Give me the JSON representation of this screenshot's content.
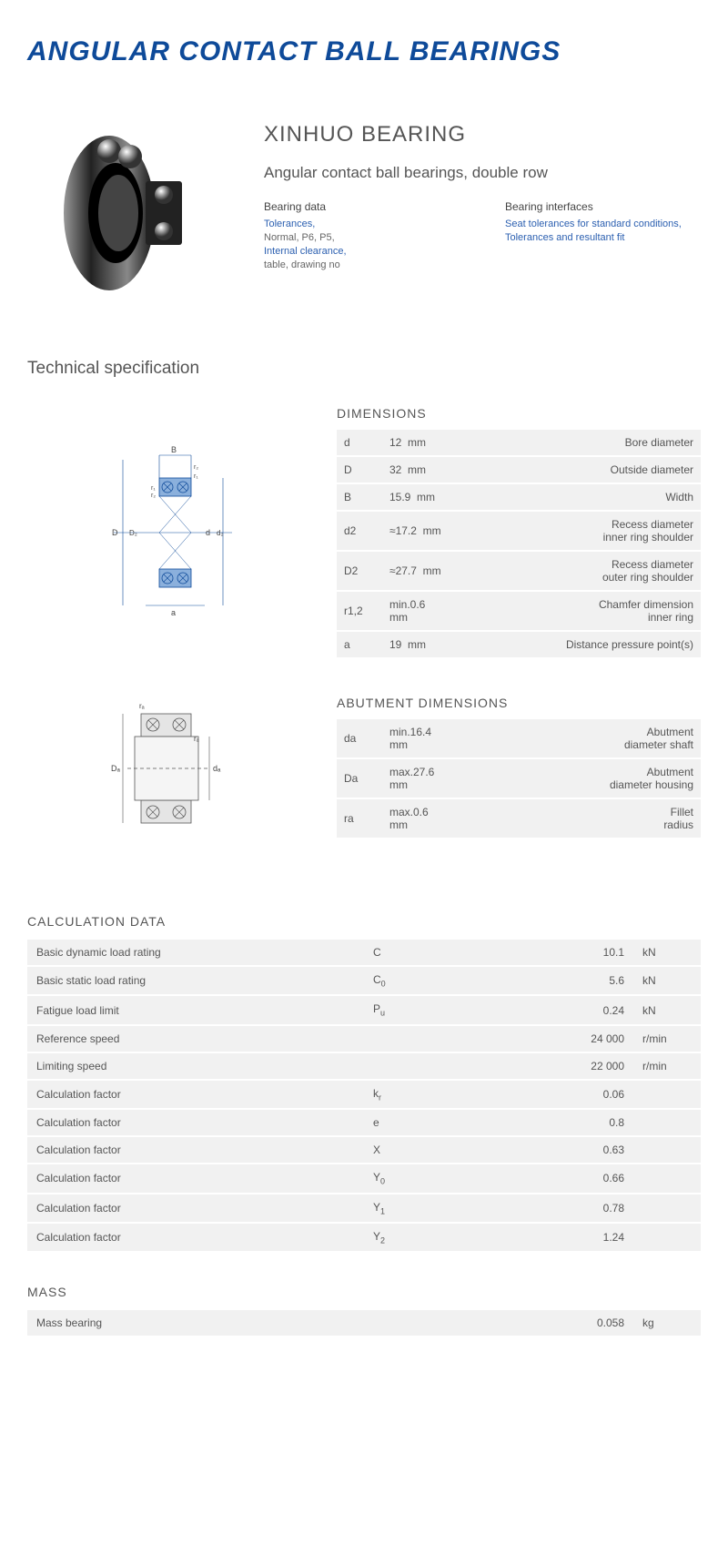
{
  "page_title": "ANGULAR CONTACT BALL BEARINGS",
  "brand": "XINHUO BEARING",
  "subtitle": "Angular contact ball bearings, double row",
  "bearing_data": {
    "heading": "Bearing data",
    "items": [
      {
        "text": "Tolerances,",
        "link": true
      },
      {
        "text": "Normal, P6, P5,",
        "link": false
      },
      {
        "text": "Internal clearance,",
        "link": true
      },
      {
        "text": "table, drawing no",
        "link": false
      }
    ]
  },
  "bearing_interfaces": {
    "heading": "Bearing interfaces",
    "items": [
      {
        "text": "Seat tolerances for standard conditions,",
        "link": true
      },
      {
        "text": "Tolerances and resultant fit",
        "link": true
      }
    ]
  },
  "tech_spec_heading": "Technical specification",
  "dimensions": {
    "title": "DIMENSIONS",
    "rows": [
      {
        "sym": "d",
        "val": "12",
        "unit": "mm",
        "desc": "Bore diameter"
      },
      {
        "sym": "D",
        "val": "32",
        "unit": "mm",
        "desc": "Outside diameter"
      },
      {
        "sym": "B",
        "val": "15.9",
        "unit": "mm",
        "desc": "Width"
      },
      {
        "sym": "d2",
        "val": "≈17.2",
        "unit": "mm",
        "desc": "Recess diameter\ninner ring shoulder"
      },
      {
        "sym": "D2",
        "val": "≈27.7",
        "unit": "mm",
        "desc": "Recess diameter\nouter ring shoulder"
      },
      {
        "sym": "r1,2",
        "val": "min.0.6",
        "unit": "mm",
        "desc": "Chamfer dimension\ninner ring"
      },
      {
        "sym": "a",
        "val": "19",
        "unit": "mm",
        "desc": "Distance pressure point(s)"
      }
    ]
  },
  "abutment": {
    "title": "ABUTMENT DIMENSIONS",
    "rows": [
      {
        "sym": "da",
        "val": "min.16.4",
        "unit": "mm",
        "desc": "Abutment\ndiameter shaft"
      },
      {
        "sym": "Da",
        "val": "max.27.6",
        "unit": "mm",
        "desc": "Abutment\ndiameter housing"
      },
      {
        "sym": "ra",
        "val": "max.0.6",
        "unit": "mm",
        "desc": "Fillet\nradius"
      }
    ]
  },
  "calculation": {
    "title": "CALCULATION DATA",
    "rows": [
      {
        "label": "Basic dynamic load rating",
        "sym": "C",
        "sub": "",
        "val": "10.1",
        "unit": "kN"
      },
      {
        "label": "Basic static load rating",
        "sym": "C",
        "sub": "0",
        "val": "5.6",
        "unit": "kN"
      },
      {
        "label": "Fatigue load limit",
        "sym": "P",
        "sub": "u",
        "val": "0.24",
        "unit": "kN"
      },
      {
        "label": "Reference speed",
        "sym": "",
        "sub": "",
        "val": "24 000",
        "unit": "r/min"
      },
      {
        "label": "Limiting speed",
        "sym": "",
        "sub": "",
        "val": "22 000",
        "unit": "r/min"
      },
      {
        "label": "Calculation factor",
        "sym": "k",
        "sub": "r",
        "val": "0.06",
        "unit": ""
      },
      {
        "label": "Calculation factor",
        "sym": "e",
        "sub": "",
        "val": "0.8",
        "unit": ""
      },
      {
        "label": "Calculation factor",
        "sym": "X",
        "sub": "",
        "val": "0.63",
        "unit": ""
      },
      {
        "label": "Calculation factor",
        "sym": "Y",
        "sub": "0",
        "val": "0.66",
        "unit": ""
      },
      {
        "label": "Calculation factor",
        "sym": "Y",
        "sub": "1",
        "val": "0.78",
        "unit": ""
      },
      {
        "label": "Calculation factor",
        "sym": "Y",
        "sub": "2",
        "val": "1.24",
        "unit": ""
      }
    ]
  },
  "mass": {
    "title": "MASS",
    "rows": [
      {
        "label": "Mass bearing",
        "sym": "",
        "sub": "",
        "val": "0.058",
        "unit": "kg"
      }
    ]
  },
  "colors": {
    "title_color": "#0e4a99",
    "link_color": "#2b5fb0",
    "text_color": "#555555",
    "row_bg": "#f1f1f1",
    "diagram_blue": "#8bb0dc"
  }
}
